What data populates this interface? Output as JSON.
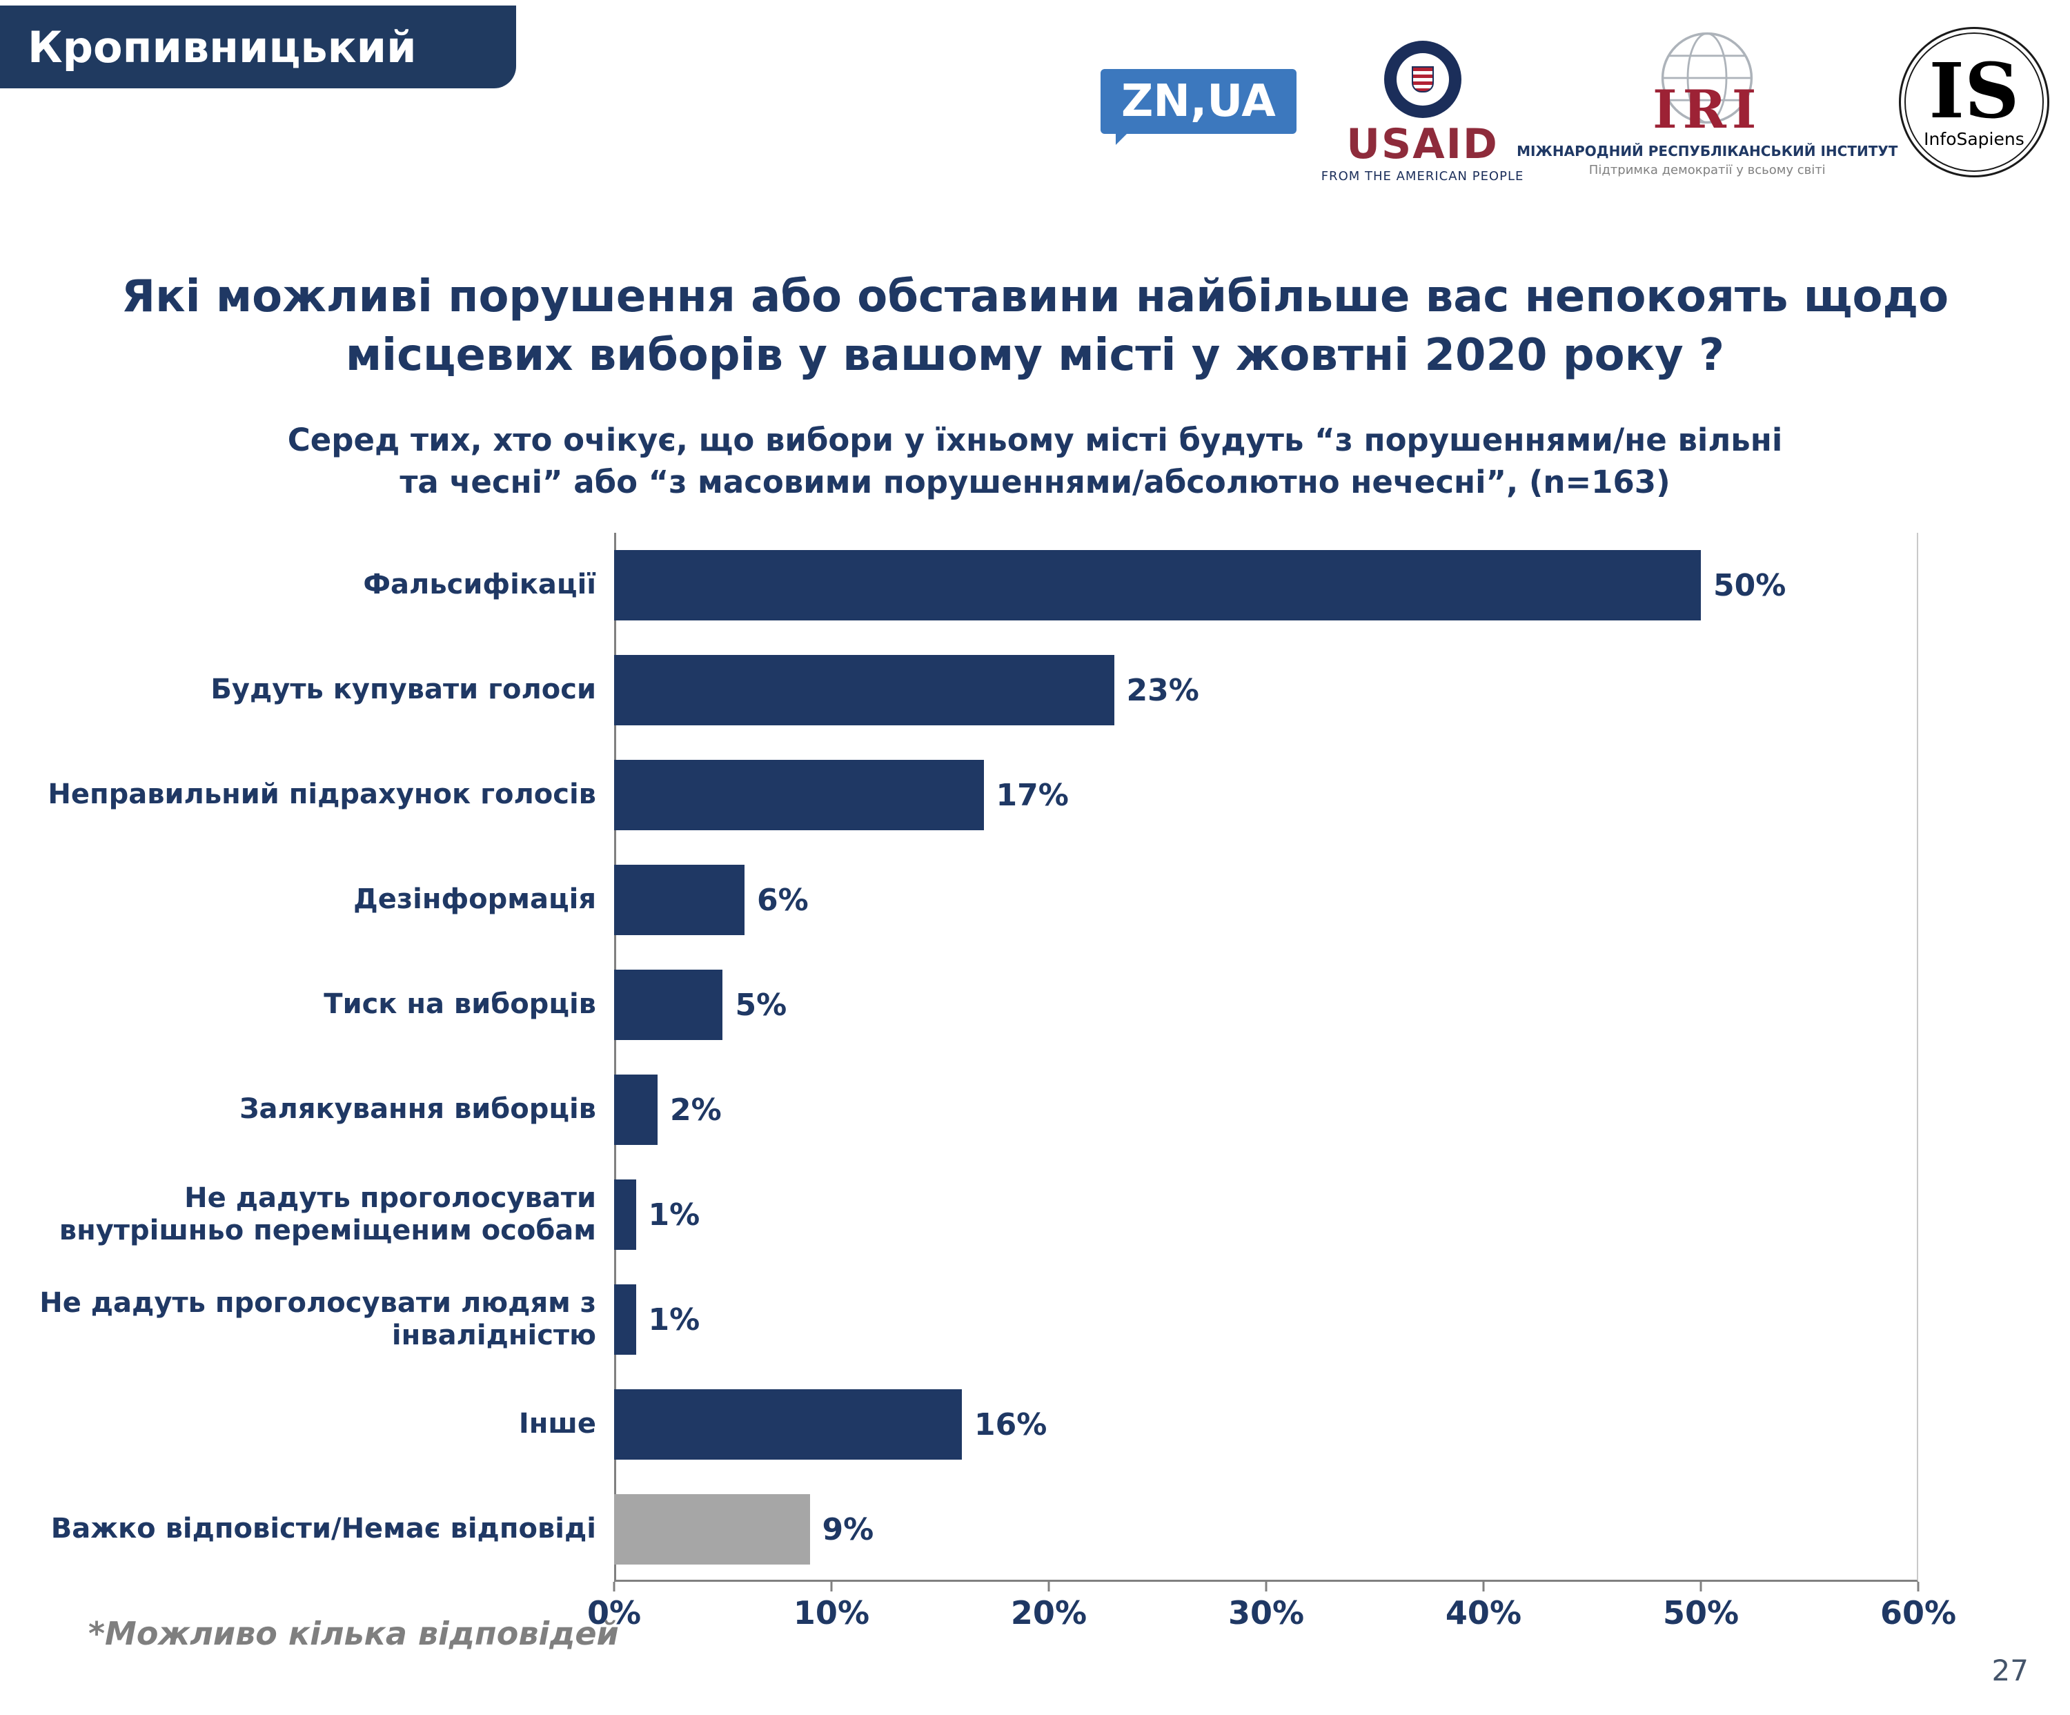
{
  "header": {
    "region_label": "Кропивницький"
  },
  "logos": {
    "znua": {
      "label": "ZN,UA",
      "bg_color": "#3C78BE"
    },
    "usaid": {
      "wordmark": "USAID",
      "tagline": "FROM THE AMERICAN PEOPLE"
    },
    "iri": {
      "wordmark": "IRI",
      "line1": "МІЖНАРОДНИЙ РЕСПУБЛІКАНСЬКИЙ ІНСТИТУТ",
      "line2": "Підтримка демократії у всьому світі"
    },
    "infosapiens": {
      "initials": "IS",
      "name": "InfoSapiens"
    }
  },
  "chart_data": {
    "type": "bar",
    "orientation": "horizontal",
    "title": "Які можливі порушення або обставини найбільше вас непокоять щодо місцевих виборів у вашому місті у жовтні 2020 року ?",
    "title_lines": [
      "Які можливі порушення або обставини найбільше вас непокоять щодо",
      "місцевих виборів у вашому місті у жовтні 2020 року ?"
    ],
    "subtitle_lines": [
      "Серед тих, хто очікує, що вибори у їхньому місті будуть “з порушеннями/не вільні",
      "та чесні” або “з масовими порушеннями/абсолютно нечесні”, (n=163)"
    ],
    "categories": [
      "Фальсифікації",
      "Будуть купувати голоси",
      "Неправильний підрахунок голосів",
      "Дезінформація",
      "Тиск на виборців",
      "Залякування виборців",
      "Не дадуть проголосувати внутрішньо переміщеним особам",
      "Не дадуть проголосувати людям з інвалідністю",
      "Інше",
      "Важко відповісти/Немає відповіді"
    ],
    "values": [
      50,
      23,
      17,
      6,
      5,
      2,
      1,
      1,
      16,
      9
    ],
    "value_labels": [
      "50%",
      "23%",
      "17%",
      "6%",
      "5%",
      "2%",
      "1%",
      "1%",
      "16%",
      "9%"
    ],
    "xlim": [
      0,
      60
    ],
    "x_ticks": [
      "0%",
      "10%",
      "20%",
      "30%",
      "40%",
      "50%",
      "60%"
    ],
    "bar_colors": [
      "#1F3864",
      "#1F3864",
      "#1F3864",
      "#1F3864",
      "#1F3864",
      "#1F3864",
      "#1F3864",
      "#1F3864",
      "#1F3864",
      "#A6A6A6"
    ],
    "grid": false,
    "legend": false
  },
  "footer": {
    "footnote": "*Можливо кілька відповідей",
    "page_number": "27"
  }
}
